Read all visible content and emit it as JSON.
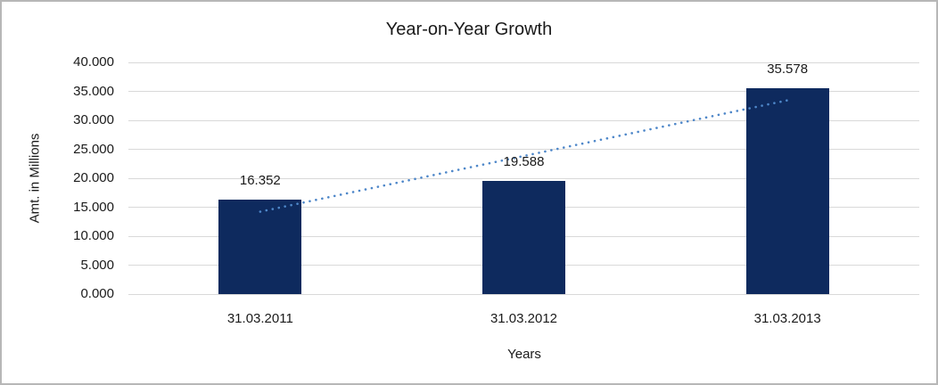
{
  "chart_data": {
    "type": "bar",
    "title": "Year-on-Year Growth",
    "xlabel": "Years",
    "ylabel": "Amt. in Millions",
    "categories": [
      "31.03.2011",
      "31.03.2012",
      "31.03.2013"
    ],
    "values": [
      16.352,
      19.588,
      35.578
    ],
    "data_labels": [
      "16.352",
      "19.588",
      "35.578"
    ],
    "y_ticks": [
      "40.000",
      "35.000",
      "30.000",
      "25.000",
      "20.000",
      "15.000",
      "10.000",
      "5.000",
      "0.000"
    ],
    "ylim": [
      0,
      40
    ],
    "grid": "horizontal",
    "legend": "none",
    "trendline": {
      "type": "linear",
      "style": "dotted"
    },
    "colors": {
      "bar": "#0e2a5e",
      "trendline": "#4e87c9",
      "gridline": "#d9d9d9",
      "border": "#b7b7b7",
      "text": "#1a1a1a"
    }
  }
}
